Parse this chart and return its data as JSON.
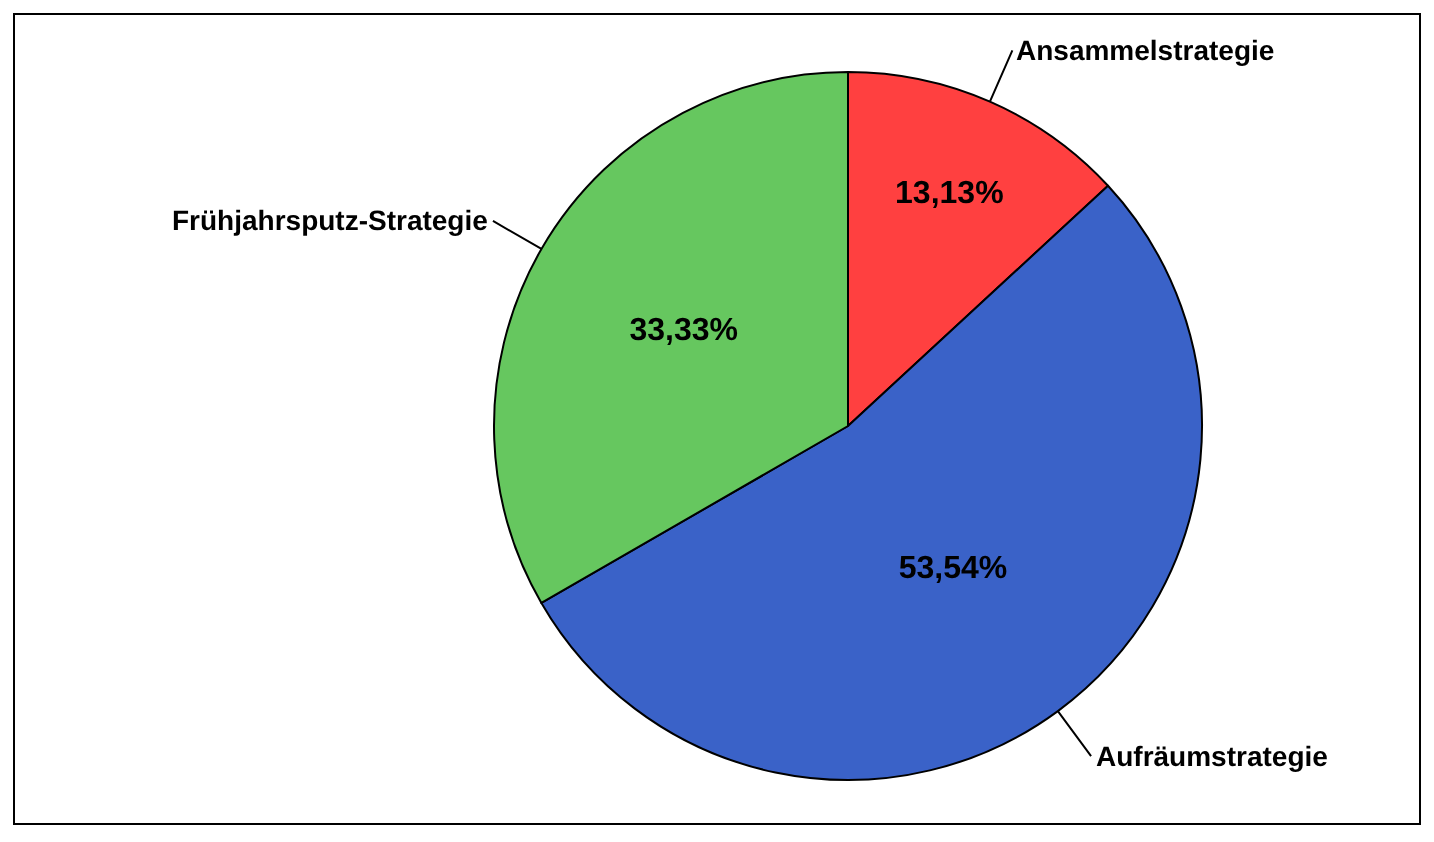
{
  "chart_data": {
    "type": "pie",
    "categories": [
      "Ansammelstrategie",
      "Aufräumstrategie",
      "Frühjahrsputz-Strategie"
    ],
    "values": [
      13.13,
      53.54,
      33.33
    ],
    "value_labels": [
      "13,13%",
      "53,54%",
      "33,33%"
    ],
    "colors": [
      "#ff4040",
      "#3a62c8",
      "#66c75f"
    ],
    "legend": false
  }
}
